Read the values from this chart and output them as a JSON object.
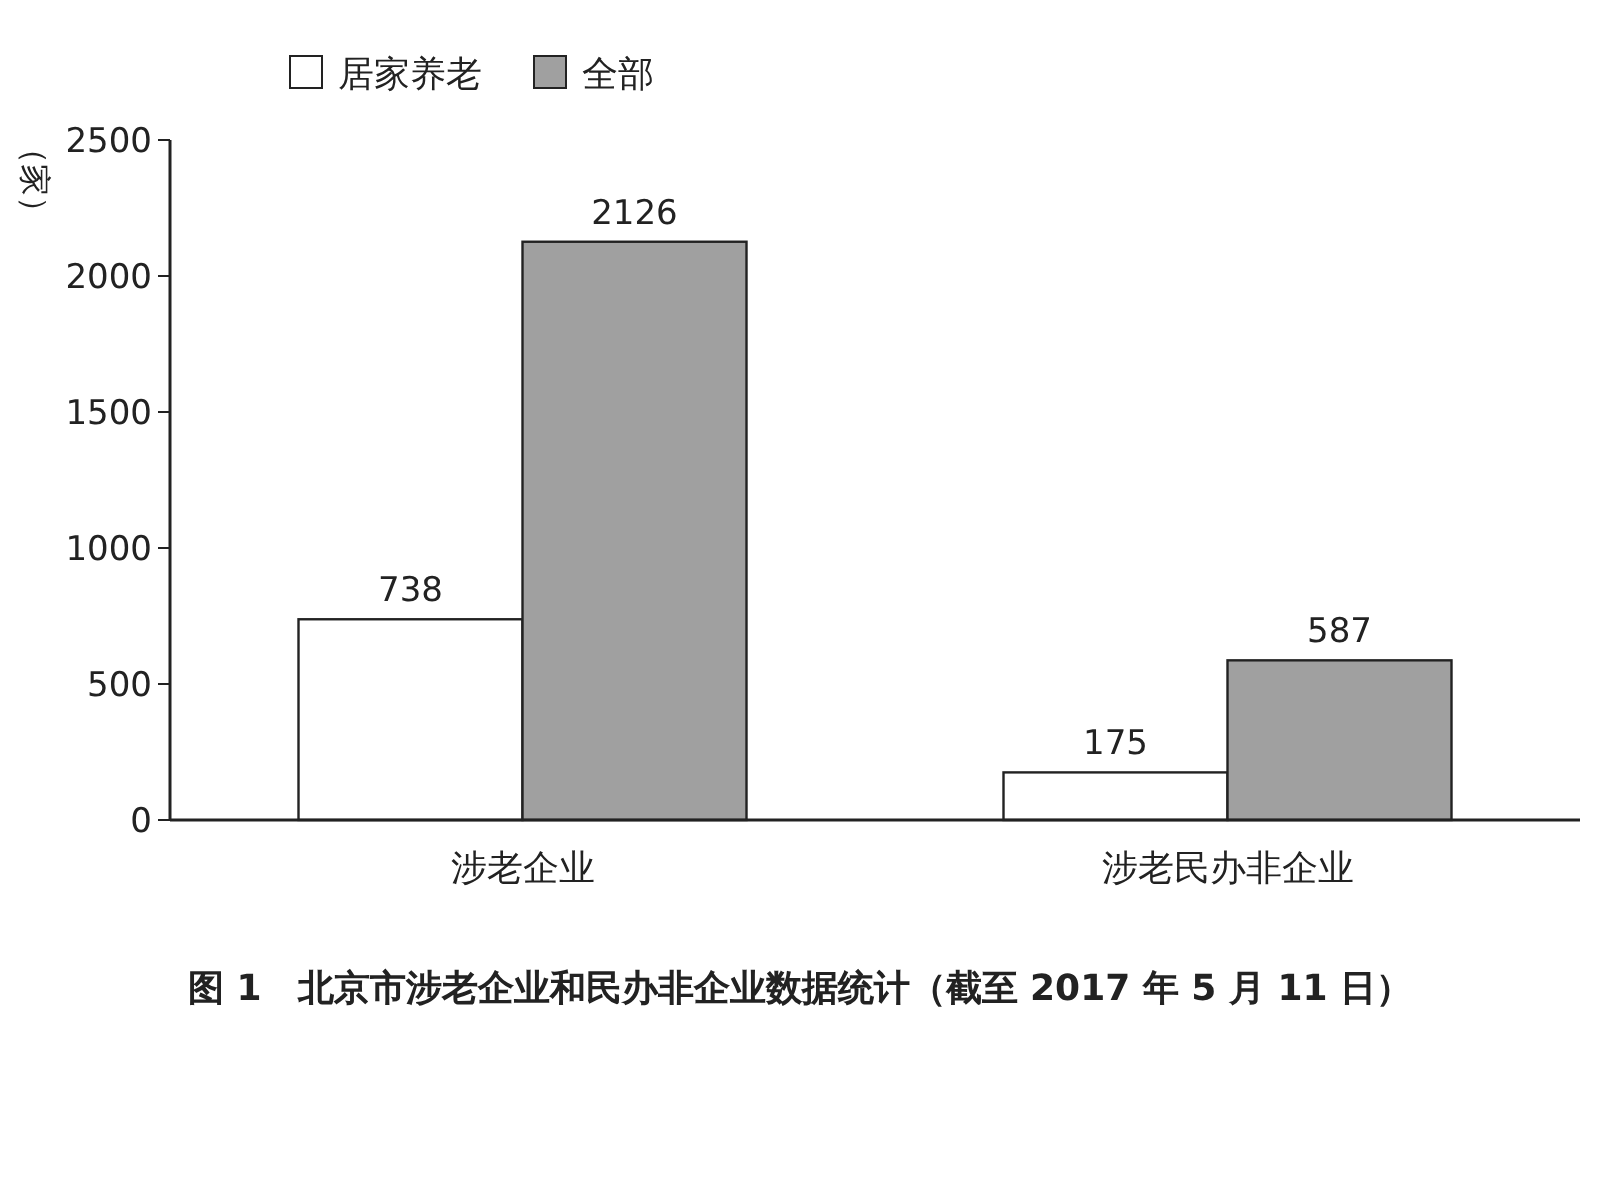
{
  "chart_data": {
    "type": "bar",
    "categories": [
      "涉老企业",
      "涉老民办非企业"
    ],
    "series": [
      {
        "name": "居家养老",
        "color": "#ffffff",
        "values": [
          738,
          175
        ]
      },
      {
        "name": "全部",
        "color": "#a0a0a0",
        "values": [
          2126,
          587
        ]
      }
    ],
    "ylim": [
      0,
      2500
    ],
    "yticks": [
      0,
      500,
      1000,
      1500,
      2000,
      2500
    ],
    "ylabel": "（家）",
    "data_labels": true,
    "legend": "top left",
    "grid": false,
    "annotations": [
      "图 1　北京市涉老企业和民办非企业数据统计（截至 2017 年 5 月 11 日）"
    ]
  }
}
